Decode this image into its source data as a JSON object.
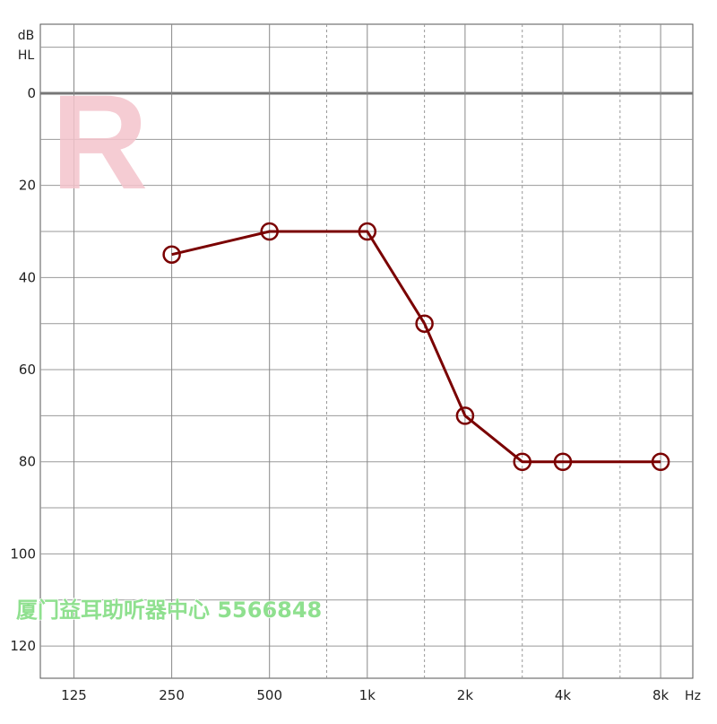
{
  "chart_data": {
    "type": "line",
    "ear_label": "R",
    "y_unit_top": "dB",
    "y_unit_bottom": "HL",
    "x_unit": "Hz",
    "ylim": [
      -15,
      127
    ],
    "y_ticks": [
      0,
      20,
      40,
      60,
      80,
      100,
      120
    ],
    "x_ticks": [
      "125",
      "250",
      "500",
      "1k",
      "2k",
      "4k",
      "8k"
    ],
    "x_interoctave": [
      "750",
      "1.5k",
      "3k",
      "6k"
    ],
    "series": [
      {
        "color": "#7a0000",
        "marker": "circle",
        "points": [
          {
            "x": "250",
            "y": 35
          },
          {
            "x": "500",
            "y": 30
          },
          {
            "x": "1k",
            "y": 30
          },
          {
            "x": "1.5k",
            "y": 50
          },
          {
            "x": "2k",
            "y": 70
          },
          {
            "x": "3k",
            "y": 80
          },
          {
            "x": "4k",
            "y": 80
          },
          {
            "x": "8k",
            "y": 80
          }
        ]
      }
    ],
    "grid": true,
    "watermark": "厦门益耳助听器中心  5566848"
  }
}
